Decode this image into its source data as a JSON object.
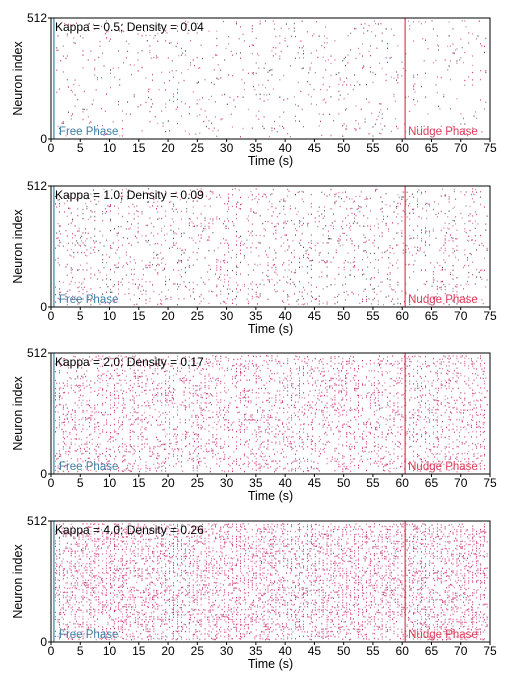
{
  "chart_data": [
    {
      "type": "scatter",
      "subtype": "spike-raster",
      "annotation": "Kappa = 0.5; Density = 0.04",
      "density": 0.04,
      "xlabel": "Time (s)",
      "ylabel": "Neuron index",
      "xlim": [
        0,
        75
      ],
      "ylim": [
        0,
        512
      ],
      "xticks": [
        0,
        5,
        10,
        15,
        20,
        25,
        30,
        35,
        40,
        45,
        50,
        55,
        60,
        65,
        70,
        75
      ],
      "yticks": [
        0,
        512
      ],
      "phase_boundaries": [
        {
          "label": "Free Phase",
          "x": 0.5,
          "color": "#3d7fa3"
        },
        {
          "label": "Nudge Phase",
          "x": 60.5,
          "color": "#d9405a"
        }
      ]
    },
    {
      "type": "scatter",
      "subtype": "spike-raster",
      "annotation": "Kappa = 1.0; Density = 0.09",
      "density": 0.09,
      "xlabel": "Time (s)",
      "ylabel": "Neuron index",
      "xlim": [
        0,
        75
      ],
      "ylim": [
        0,
        512
      ],
      "xticks": [
        0,
        5,
        10,
        15,
        20,
        25,
        30,
        35,
        40,
        45,
        50,
        55,
        60,
        65,
        70,
        75
      ],
      "yticks": [
        0,
        512
      ],
      "phase_boundaries": [
        {
          "label": "Free Phase",
          "x": 0.5,
          "color": "#3d7fa3"
        },
        {
          "label": "Nudge Phase",
          "x": 60.5,
          "color": "#d9405a"
        }
      ]
    },
    {
      "type": "scatter",
      "subtype": "spike-raster",
      "annotation": "Kappa = 2.0; Density = 0.17",
      "density": 0.17,
      "xlabel": "Time (s)",
      "ylabel": "Neuron index",
      "xlim": [
        0,
        75
      ],
      "ylim": [
        0,
        512
      ],
      "xticks": [
        0,
        5,
        10,
        15,
        20,
        25,
        30,
        35,
        40,
        45,
        50,
        55,
        60,
        65,
        70,
        75
      ],
      "yticks": [
        0,
        512
      ],
      "phase_boundaries": [
        {
          "label": "Free Phase",
          "x": 0.5,
          "color": "#3d7fa3"
        },
        {
          "label": "Nudge Phase",
          "x": 60.5,
          "color": "#d9405a"
        }
      ]
    },
    {
      "type": "scatter",
      "subtype": "spike-raster",
      "annotation": "Kappa = 4.0; Density = 0.26",
      "density": 0.26,
      "xlabel": "Time (s)",
      "ylabel": "Neuron index",
      "xlim": [
        0,
        75
      ],
      "ylim": [
        0,
        512
      ],
      "xticks": [
        0,
        5,
        10,
        15,
        20,
        25,
        30,
        35,
        40,
        45,
        50,
        55,
        60,
        65,
        70,
        75
      ],
      "yticks": [
        0,
        512
      ],
      "phase_boundaries": [
        {
          "label": "Free Phase",
          "x": 0.5,
          "color": "#3d7fa3"
        },
        {
          "label": "Nudge Phase",
          "x": 60.5,
          "color": "#d9405a"
        }
      ]
    }
  ],
  "colors": {
    "spike": "#c2185b",
    "spike_dark": "#333333",
    "axis": "#000000",
    "free_phase": "#3d7fa3",
    "nudge_phase": "#d9405a"
  }
}
